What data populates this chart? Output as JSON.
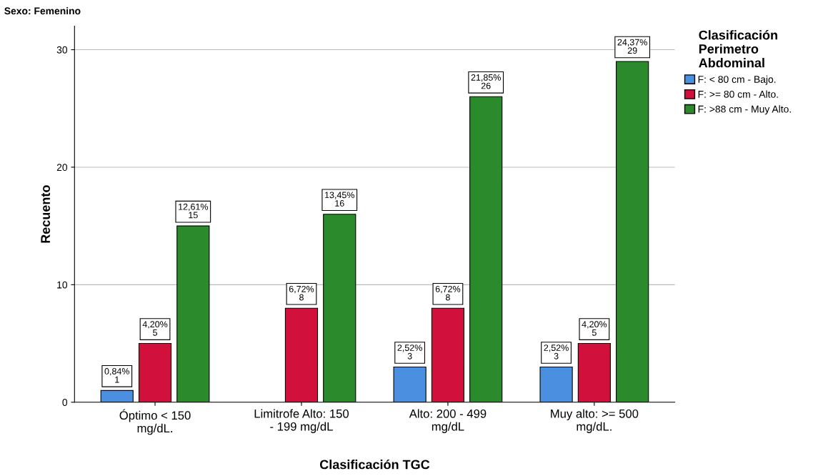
{
  "chart_data": {
    "type": "bar",
    "xlabel": "Clasificación TGC",
    "ylabel": "Recuento",
    "legend_title": "Clasificación\nPerimetro\nAbdominal",
    "categories": [
      "Óptimo < 150\nmg/dL.",
      "Limitrofe Alto: 150\n- 199 mg/dL",
      "Alto: 200 - 499\nmg/dL",
      "Muy alto: >= 500\nmg/dL."
    ],
    "series": [
      {
        "name": "F: < 80 cm - Bajo.",
        "color": "#4a8fe0",
        "values": [
          1,
          null,
          3,
          3
        ],
        "value_labels": [
          "0,84%\n1",
          null,
          "2,52%\n3",
          "2,52%\n3"
        ]
      },
      {
        "name": "F: >= 80 cm - Alto.",
        "color": "#d2103c",
        "values": [
          5,
          8,
          8,
          5
        ],
        "value_labels": [
          "4,20%\n5",
          "6,72%\n8",
          "6,72%\n8",
          "4,20%\n5"
        ]
      },
      {
        "name": "F: >88 cm - Muy Alto.",
        "color": "#2b8a2b",
        "values": [
          15,
          16,
          26,
          29
        ],
        "value_labels": [
          "12,61%\n15",
          "13,45%\n16",
          "21,85%\n26",
          "24,37%\n29"
        ]
      }
    ],
    "ylim": [
      0,
      32
    ],
    "yticks": [
      0,
      10,
      20,
      30
    ],
    "grid": "y",
    "legend": "right",
    "annotations": [
      "Sexo: Femenino"
    ]
  }
}
